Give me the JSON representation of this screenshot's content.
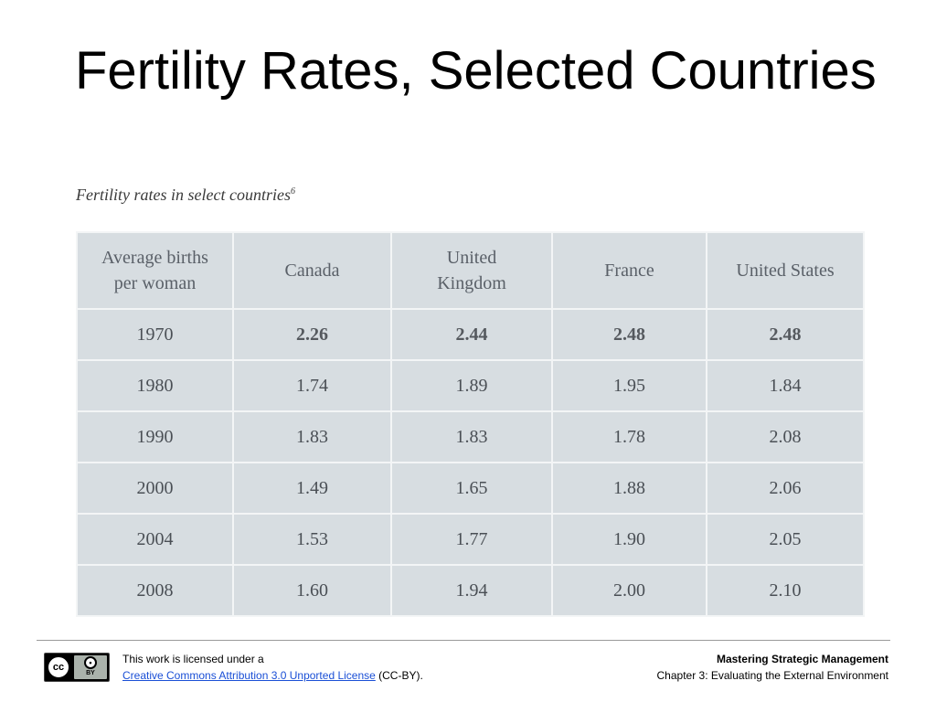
{
  "slide": {
    "title": "Fertility Rates, Selected Countries"
  },
  "table": {
    "caption": "Fertility rates in select countries",
    "caption_footnote": "6",
    "header": {
      "line1": "Average births",
      "line2": "per woman",
      "columns": [
        {
          "line1": "Canada",
          "line2": ""
        },
        {
          "line1": "United",
          "line2": "Kingdom"
        },
        {
          "line1": "France",
          "line2": ""
        },
        {
          "line1": "United States",
          "line2": ""
        }
      ]
    },
    "rows": [
      {
        "year": "1970",
        "values": [
          "2.26",
          "2.44",
          "2.48",
          "2.48"
        ]
      },
      {
        "year": "1980",
        "values": [
          "1.74",
          "1.89",
          "1.95",
          "1.84"
        ]
      },
      {
        "year": "1990",
        "values": [
          "1.83",
          "1.83",
          "1.78",
          "2.08"
        ]
      },
      {
        "year": "2000",
        "values": [
          "1.49",
          "1.65",
          "1.88",
          "2.06"
        ]
      },
      {
        "year": "2004",
        "values": [
          "1.53",
          "1.77",
          "1.90",
          "2.05"
        ]
      },
      {
        "year": "2008",
        "values": [
          "1.60",
          "1.94",
          "2.00",
          "2.10"
        ]
      }
    ]
  },
  "footer": {
    "cc_badge_left": "cc",
    "cc_badge_right": "BY",
    "license_prefix": "This work is licensed under a",
    "license_link": "Creative Commons Attribution 3.0 Unported License",
    "license_suffix": " (CC-BY).",
    "book_title": "Mastering Strategic Management",
    "chapter": "Chapter 3: Evaluating the External Environment"
  },
  "colors": {
    "table_bg": "#d7dde1",
    "table_border": "#f3f5f6",
    "link": "#1a4fd6"
  }
}
